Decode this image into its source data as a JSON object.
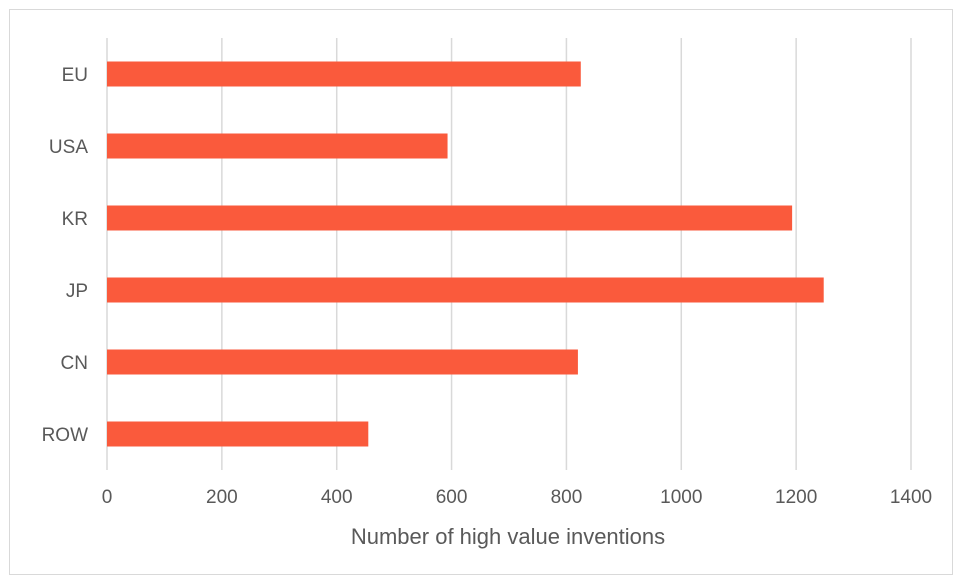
{
  "chart_data": {
    "type": "bar",
    "orientation": "horizontal",
    "title": "",
    "xlabel": "Number of high value inventions",
    "ylabel": "",
    "categories": [
      "EU",
      "USA",
      "KR",
      "JP",
      "CN",
      "ROW"
    ],
    "values": [
      825,
      593,
      1193,
      1248,
      820,
      455
    ],
    "xlim": [
      0,
      1400
    ],
    "xticks": [
      "0",
      "200",
      "400",
      "600",
      "800",
      "1000",
      "1200",
      "1400"
    ],
    "grid": true,
    "legend": "none",
    "bar_color": "#fa5a3c",
    "gridline_color": "#d9d9d9",
    "text_color": "#595959"
  }
}
